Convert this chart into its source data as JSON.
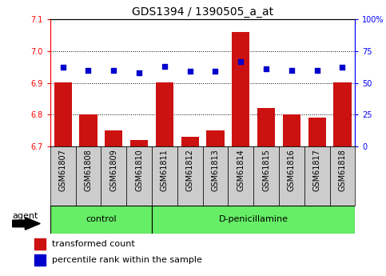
{
  "title": "GDS1394 / 1390505_a_at",
  "samples": [
    "GSM61807",
    "GSM61808",
    "GSM61809",
    "GSM61810",
    "GSM61811",
    "GSM61812",
    "GSM61813",
    "GSM61814",
    "GSM61815",
    "GSM61816",
    "GSM61817",
    "GSM61818"
  ],
  "bar_values": [
    6.9,
    6.8,
    6.75,
    6.72,
    6.9,
    6.73,
    6.75,
    7.06,
    6.82,
    6.8,
    6.79,
    6.9
  ],
  "percentile_values": [
    62,
    60,
    60,
    58,
    63,
    59,
    59,
    67,
    61,
    60,
    60,
    62
  ],
  "ylim_left": [
    6.7,
    7.1
  ],
  "ylim_right": [
    0,
    100
  ],
  "yticks_left": [
    6.7,
    6.8,
    6.9,
    7.0,
    7.1
  ],
  "yticks_right": [
    0,
    25,
    50,
    75,
    100
  ],
  "ytick_labels_right": [
    "0",
    "25",
    "50",
    "75",
    "100%"
  ],
  "bar_color": "#cc1111",
  "dot_color": "#0000cc",
  "bar_bottom": 6.7,
  "control_count": 4,
  "groups": [
    "control",
    "D-penicillamine"
  ],
  "group_color": "#66ee66",
  "sample_box_color": "#cccccc",
  "legend_bar_label": "transformed count",
  "legend_dot_label": "percentile rank within the sample",
  "agent_label": "agent",
  "title_fontsize": 10,
  "tick_fontsize": 7,
  "legend_fontsize": 8,
  "group_fontsize": 8
}
